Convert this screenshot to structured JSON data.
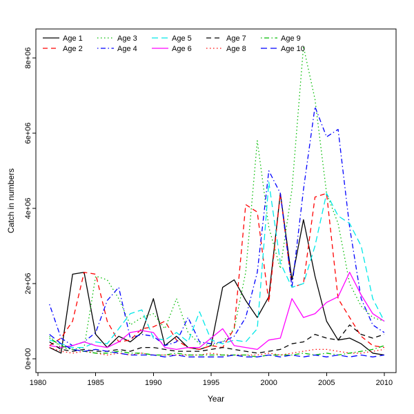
{
  "figure": {
    "background": "#ffffff"
  },
  "chart_data": {
    "type": "line",
    "title": "",
    "xlabel": "Year",
    "ylabel": "Catch in numbers",
    "x": [
      1981,
      1982,
      1983,
      1984,
      1985,
      1986,
      1987,
      1988,
      1989,
      1990,
      1991,
      1992,
      1993,
      1994,
      1995,
      1996,
      1997,
      1998,
      1999,
      2000,
      2001,
      2002,
      2003,
      2004,
      2005,
      2006,
      2007,
      2008,
      2009,
      2010
    ],
    "x_ticks": [
      1980,
      1985,
      1990,
      1995,
      2000,
      2005,
      2010
    ],
    "x_tick_labels": [
      "1980",
      "1985",
      "1990",
      "1995",
      "2000",
      "2005",
      "2010"
    ],
    "y_ticks": [
      0,
      2000000,
      4000000,
      6000000,
      8000000
    ],
    "y_tick_labels": [
      "0e+00",
      "2e+06",
      "4e+06",
      "6e+06",
      "8e+06"
    ],
    "xlim": [
      1979.8,
      2011.0
    ],
    "ylim": [
      -350000,
      8750000
    ],
    "grid": false,
    "legend_position": "top-inside",
    "legend_columns": 5,
    "series": [
      {
        "name": "Age 1",
        "color": "#000000",
        "linestyle": "solid",
        "values": [
          300000,
          150000,
          2250000,
          2300000,
          650000,
          300000,
          600000,
          450000,
          700000,
          1600000,
          350000,
          600000,
          300000,
          250000,
          350000,
          1900000,
          2100000,
          1550000,
          1100000,
          1650000,
          4400000,
          2100000,
          3700000,
          2200000,
          1000000,
          500000,
          550000,
          400000,
          150000,
          100000
        ]
      },
      {
        "name": "Age 2",
        "color": "#ff0000",
        "linestyle": "dashed",
        "values": [
          350000,
          550000,
          1000000,
          2300000,
          2250000,
          1000000,
          450000,
          500000,
          800000,
          850000,
          1000000,
          500000,
          300000,
          250000,
          350000,
          300000,
          800000,
          4100000,
          3900000,
          1500000,
          4400000,
          1900000,
          2000000,
          4300000,
          4400000,
          1600000,
          1100000,
          600000,
          350000,
          300000
        ]
      },
      {
        "name": "Age 3",
        "color": "#00bb00",
        "linestyle": "dotted",
        "values": [
          600000,
          300000,
          250000,
          300000,
          2200000,
          2100000,
          1600000,
          900000,
          1100000,
          1200000,
          800000,
          1600000,
          700000,
          400000,
          350000,
          450000,
          800000,
          2300000,
          5800000,
          3500000,
          2400000,
          4500000,
          8300000,
          6900000,
          4400000,
          3600000,
          2000000,
          1400000,
          1100000,
          1000000
        ]
      },
      {
        "name": "Age 4",
        "color": "#0000ff",
        "linestyle": "dotdash",
        "values": [
          1450000,
          550000,
          350000,
          450000,
          700000,
          1550000,
          1900000,
          550000,
          650000,
          600000,
          350000,
          450000,
          1100000,
          450000,
          400000,
          450000,
          600000,
          1100000,
          2300000,
          5000000,
          4400000,
          1900000,
          4500000,
          6700000,
          5900000,
          6100000,
          3500000,
          1600000,
          900000,
          700000
        ]
      },
      {
        "name": "Age 5",
        "color": "#00e8e8",
        "linestyle": "longdash",
        "values": [
          500000,
          400000,
          300000,
          300000,
          450000,
          400000,
          800000,
          1200000,
          1300000,
          550000,
          500000,
          700000,
          450000,
          1250000,
          500000,
          400000,
          500000,
          450000,
          800000,
          4700000,
          2550000,
          1900000,
          2000000,
          3000000,
          4400000,
          3800000,
          3600000,
          3000000,
          1600000,
          1000000
        ]
      },
      {
        "name": "Age 6",
        "color": "#ff00ff",
        "linestyle": "solid",
        "values": [
          350000,
          300000,
          350000,
          450000,
          350000,
          300000,
          450000,
          700000,
          750000,
          700000,
          300000,
          250000,
          300000,
          300000,
          550000,
          800000,
          350000,
          300000,
          250000,
          500000,
          550000,
          1600000,
          1100000,
          1200000,
          1500000,
          1650000,
          2300000,
          1700000,
          1200000,
          1000000
        ]
      },
      {
        "name": "Age 7",
        "color": "#000000",
        "linestyle": "dashed",
        "values": [
          450000,
          250000,
          200000,
          250000,
          200000,
          200000,
          250000,
          200000,
          300000,
          300000,
          250000,
          200000,
          200000,
          200000,
          250000,
          300000,
          250000,
          200000,
          150000,
          200000,
          250000,
          400000,
          450000,
          650000,
          550000,
          500000,
          900000,
          650000,
          550000,
          650000
        ]
      },
      {
        "name": "Age 8",
        "color": "#ff0000",
        "linestyle": "dotted",
        "values": [
          300000,
          200000,
          150000,
          200000,
          150000,
          100000,
          150000,
          100000,
          150000,
          100000,
          100000,
          100000,
          100000,
          100000,
          150000,
          100000,
          100000,
          100000,
          100000,
          150000,
          100000,
          150000,
          200000,
          250000,
          250000,
          200000,
          150000,
          150000,
          200000,
          250000
        ]
      },
      {
        "name": "Age 9",
        "color": "#00bb00",
        "linestyle": "dotdash",
        "values": [
          550000,
          350000,
          250000,
          200000,
          150000,
          150000,
          200000,
          150000,
          150000,
          100000,
          100000,
          150000,
          100000,
          100000,
          100000,
          100000,
          100000,
          100000,
          50000,
          100000,
          100000,
          100000,
          150000,
          100000,
          150000,
          100000,
          150000,
          200000,
          250000,
          350000
        ]
      },
      {
        "name": "Age 10",
        "color": "#0000ff",
        "linestyle": "longdash",
        "values": [
          650000,
          400000,
          250000,
          200000,
          250000,
          200000,
          150000,
          100000,
          100000,
          100000,
          50000,
          100000,
          50000,
          50000,
          50000,
          50000,
          100000,
          50000,
          50000,
          100000,
          50000,
          100000,
          50000,
          100000,
          50000,
          100000,
          50000,
          100000,
          50000,
          100000
        ]
      }
    ]
  }
}
